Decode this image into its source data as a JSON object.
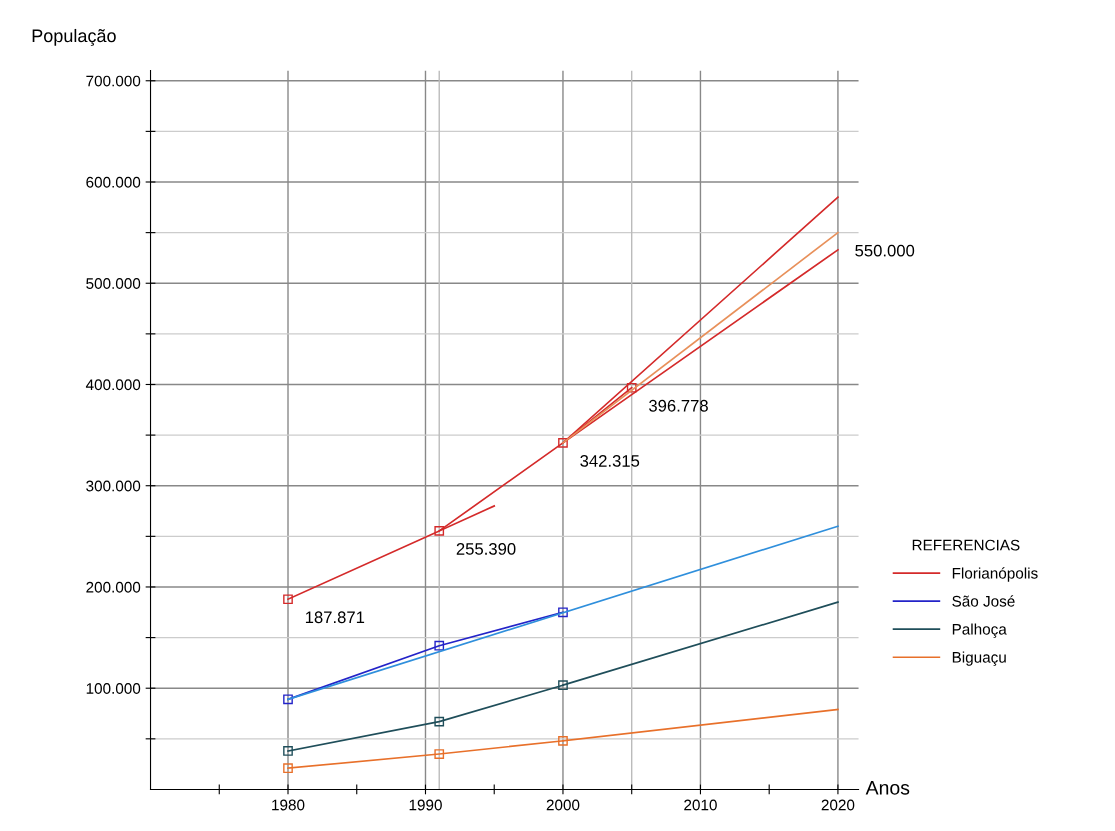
{
  "chart_data": {
    "type": "line",
    "xlabel": "Anos",
    "ylabel": "População",
    "legend_title": "REFERENCIAS",
    "legend": "right",
    "grid": true,
    "line_style": "solid",
    "xlim": [
      1970,
      2021.5
    ],
    "ylim": [
      0,
      710000
    ],
    "xticks": [
      {
        "value": 1975,
        "label": null
      },
      1980,
      {
        "value": 1985,
        "label": null
      },
      1990,
      {
        "value": 1995,
        "label": null
      },
      2000,
      {
        "value": 2005,
        "label": null
      },
      2010,
      {
        "value": 2015,
        "label": null
      },
      2020
    ],
    "yticks": [
      {
        "value": 50000,
        "label": null
      },
      {
        "value": 100000,
        "label": "100.000"
      },
      {
        "value": 150000,
        "label": null
      },
      {
        "value": 200000,
        "label": "200.000"
      },
      {
        "value": 250000,
        "label": null
      },
      {
        "value": 300000,
        "label": "300.000"
      },
      {
        "value": 350000,
        "label": null
      },
      {
        "value": 400000,
        "label": "400.000"
      },
      {
        "value": 450000,
        "label": null
      },
      {
        "value": 500000,
        "label": "500.000"
      },
      {
        "value": 550000,
        "label": null
      },
      {
        "value": 600000,
        "label": "600.000"
      },
      {
        "value": 650000,
        "label": null
      },
      {
        "value": 700000,
        "label": "700.000"
      }
    ],
    "ref_lines": [
      {
        "axis": "x",
        "value": 1991,
        "color": "#bbbbbb"
      },
      {
        "axis": "x",
        "value": 2005,
        "color": "#bbbbbb"
      }
    ],
    "series": [
      {
        "name": "Florianópolis",
        "color": "#d42a2a",
        "marker": "square",
        "x": [
          1980,
          1991,
          2000,
          2005
        ],
        "values": [
          187871,
          255390,
          342315,
          396778
        ]
      },
      {
        "color": "#d42a2a",
        "marker": "none",
        "x": [
          2000,
          2020
        ],
        "values": [
          342315,
          585000
        ]
      },
      {
        "color": "#d42a2a",
        "marker": "none",
        "x": [
          2000,
          2020
        ],
        "values": [
          342315,
          533000
        ]
      },
      {
        "color": "#d42a2a",
        "marker": "none",
        "x": [
          1991,
          1995
        ],
        "values": [
          255390,
          280000
        ]
      },
      {
        "color": "#e8905a",
        "marker": "none",
        "x": [
          2000,
          2020
        ],
        "values": [
          342315,
          550000
        ]
      },
      {
        "name": "São José",
        "color": "#2323c8",
        "marker": "square",
        "x": [
          1980,
          1991,
          2000
        ],
        "values": [
          89000,
          142000,
          175000
        ]
      },
      {
        "color": "#2f8fdc",
        "marker": "none",
        "x": [
          1980,
          2020
        ],
        "values": [
          89000,
          260000
        ]
      },
      {
        "name": "Palhoça",
        "color": "#1f4e5a",
        "marker": "square",
        "x": [
          1980,
          1991,
          2000
        ],
        "values": [
          38000,
          67000,
          103000
        ]
      },
      {
        "color": "#1f4e5a",
        "marker": "none",
        "x": [
          2000,
          2020
        ],
        "values": [
          103000,
          185000
        ]
      },
      {
        "name": "Biguaçu",
        "color": "#e8702a",
        "marker": "square",
        "x": [
          1980,
          1991,
          2000
        ],
        "values": [
          21000,
          35000,
          48000
        ]
      },
      {
        "color": "#e8702a",
        "marker": "none",
        "x": [
          2000,
          2020
        ],
        "values": [
          48000,
          79000
        ]
      }
    ],
    "annotations": [
      {
        "text": "187.871",
        "x": 1980,
        "y": 187871
      },
      {
        "text": "255.390",
        "x": 1991,
        "y": 255390
      },
      {
        "text": "342.315",
        "x": 2000,
        "y": 342315
      },
      {
        "text": "396.778",
        "x": 2005,
        "y": 396778
      },
      {
        "text": "550.000",
        "x": 2020,
        "y": 550000
      }
    ]
  }
}
